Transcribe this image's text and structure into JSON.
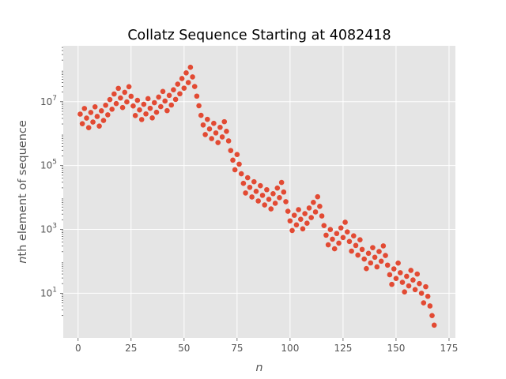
{
  "chart_data": {
    "type": "scatter",
    "title": "Collatz Sequence Starting at 4082418",
    "xlabel": "n",
    "ylabel": "nth element of sequence",
    "yscale": "log",
    "xlim": [
      -7,
      178
    ],
    "ylim_log10": [
      -0.4,
      8.75
    ],
    "x_ticks": [
      0,
      25,
      50,
      75,
      100,
      125,
      150,
      175
    ],
    "x_tick_labels": [
      "0",
      "25",
      "50",
      "75",
      "100",
      "125",
      "150",
      "175"
    ],
    "y_ticks": [
      1,
      3,
      5,
      7
    ],
    "grid": true,
    "background_color": "#E5E5E5",
    "point_color": "#E24A33",
    "x": [
      1,
      2,
      3,
      4,
      5,
      6,
      7,
      8,
      9,
      10,
      11,
      12,
      13,
      14,
      15,
      16,
      17,
      18,
      19,
      20,
      21,
      22,
      23,
      24,
      25,
      26,
      27,
      28,
      29,
      30,
      31,
      32,
      33,
      34,
      35,
      36,
      37,
      38,
      39,
      40,
      41,
      42,
      43,
      44,
      45,
      46,
      47,
      48,
      49,
      50,
      51,
      52,
      53,
      54,
      55,
      56,
      57,
      58,
      59,
      60,
      61,
      62,
      63,
      64,
      65,
      66,
      67,
      68,
      69,
      70,
      71,
      72,
      73,
      74,
      75,
      76,
      77,
      78,
      79,
      80,
      81,
      82,
      83,
      84,
      85,
      86,
      87,
      88,
      89,
      90,
      91,
      92,
      93,
      94,
      95,
      96,
      97,
      98,
      99,
      100,
      101,
      102,
      103,
      104,
      105,
      106,
      107,
      108,
      109,
      110,
      111,
      112,
      113,
      114,
      115,
      116,
      117,
      118,
      119,
      120,
      121,
      122,
      123,
      124,
      125,
      126,
      127,
      128,
      129,
      130,
      131,
      132,
      133,
      134,
      135,
      136,
      137,
      138,
      139,
      140,
      141,
      142,
      143,
      144,
      145,
      146,
      147,
      148,
      149,
      150,
      151,
      152,
      153,
      154,
      155,
      156,
      157,
      158,
      159,
      160,
      161,
      162,
      163,
      164,
      165,
      166,
      167,
      168
    ],
    "y": [
      4082418,
      2041209,
      6123628,
      3061814,
      1530907,
      4592722,
      2296361,
      6889084,
      3444542,
      1722271,
      5166814,
      2583407,
      7750222,
      3875111,
      11625334,
      5812667,
      17438002,
      8719001,
      26157004,
      13078502,
      6539251,
      19617754,
      9808877,
      29426632,
      14713316,
      7356658,
      3678329,
      11034988,
      5517494,
      2758747,
      8276242,
      4138121,
      12414364,
      6207182,
      3103591,
      9310774,
      4655387,
      13966162,
      6983081,
      20949244,
      10474622,
      5237311,
      15711934,
      7855967,
      23567902,
      11783951,
      35351854,
      17675927,
      53027782,
      26513891,
      79541674,
      39770837,
      119312512,
      59656256,
      29828128,
      14914064,
      7457032,
      3728516,
      1864258,
      932129,
      2796388,
      1398194,
      699097,
      2097292,
      1048646,
      524323,
      1572970,
      786485,
      2359456,
      1179728,
      589864,
      294932,
      147466,
      73733,
      221200,
      110600,
      55300,
      27650,
      13825,
      41476,
      20738,
      10369,
      31108,
      15554,
      7777,
      23332,
      11666,
      5833,
      17500,
      8750,
      4375,
      13126,
      6563,
      19690,
      9845,
      29536,
      14768,
      7384,
      3692,
      1846,
      923,
      2770,
      1385,
      4156,
      2078,
      1039,
      3118,
      1559,
      4678,
      2339,
      7018,
      3509,
      10528,
      5264,
      2632,
      1316,
      658,
      329,
      988,
      494,
      247,
      742,
      371,
      1114,
      557,
      1672,
      836,
      418,
      209,
      628,
      314,
      157,
      472,
      236,
      118,
      59,
      178,
      89,
      268,
      134,
      67,
      202,
      101,
      304,
      152,
      76,
      38,
      19,
      58,
      29,
      88,
      44,
      22,
      11,
      34,
      17,
      52,
      26,
      13,
      40,
      20,
      10,
      5,
      16,
      8,
      4,
      2,
      1
    ]
  }
}
